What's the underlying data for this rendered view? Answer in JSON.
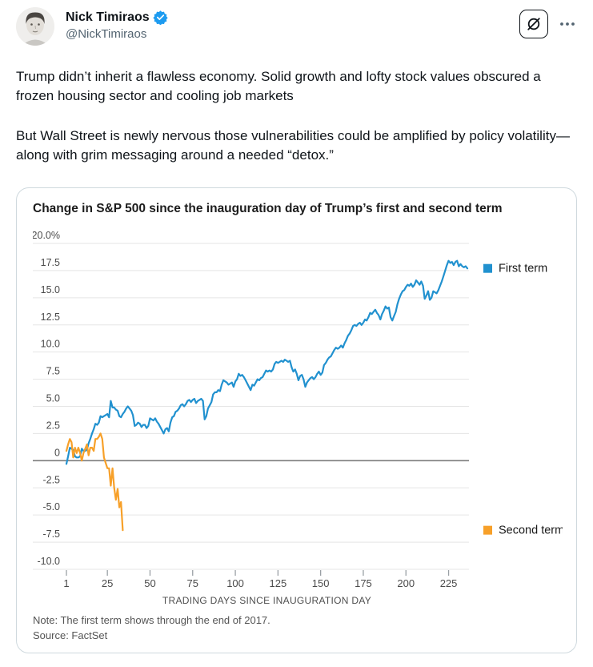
{
  "header": {
    "display_name": "Nick Timiraos",
    "handle": "@NickTimiraos",
    "icons": {
      "verified": "verified-badge",
      "grok": "slashed-circle",
      "more": "horizontal-dots"
    },
    "verified_color": "#1d9bf0"
  },
  "tweet": {
    "paragraph1": "Trump didn’t inherit a flawless economy. Solid growth and lofty stock values obscured a frozen housing sector and cooling job markets",
    "paragraph2": "But Wall Street is newly nervous those vulnerabilities could be amplified by policy volatility—along with grim messaging around a needed “detox.”"
  },
  "chart_data": {
    "type": "line",
    "title": "Change in S&P 500 since the inauguration day of Trump’s first and second term",
    "xlabel": "TRADING DAYS SINCE INAUGURATION DAY",
    "ylabel": "",
    "xlim": [
      1,
      236
    ],
    "ylim": [
      -10,
      20
    ],
    "grid": "horizontal",
    "legend_position": "right-of-plot, aligned to line ends",
    "yticks": [
      {
        "value": 20,
        "label": "20.0%"
      },
      {
        "value": 17.5,
        "label": "17.5"
      },
      {
        "value": 15,
        "label": "15.0"
      },
      {
        "value": 12.5,
        "label": "12.5"
      },
      {
        "value": 10,
        "label": "10.0"
      },
      {
        "value": 7.5,
        "label": "7.5"
      },
      {
        "value": 5,
        "label": "5.0"
      },
      {
        "value": 2.5,
        "label": "2.5"
      },
      {
        "value": 0,
        "label": "0"
      },
      {
        "value": -2.5,
        "label": "-2.5"
      },
      {
        "value": -5,
        "label": "-5.0"
      },
      {
        "value": -7.5,
        "label": "-7.5"
      },
      {
        "value": -10,
        "label": "-10.0"
      }
    ],
    "xticks": [
      1,
      25,
      50,
      75,
      100,
      125,
      150,
      175,
      200,
      225
    ],
    "colors": {
      "gridline": "#e5e5e5",
      "zero_line": "#7c7c7c",
      "axis_text": "#4a4a4a",
      "tick_mark": "#9aa0a5",
      "legend_text": "#1a1a1a"
    },
    "series": [
      {
        "name": "First term",
        "color": "#2191cf",
        "points": [
          [
            1,
            -0.3
          ],
          [
            2,
            0.4
          ],
          [
            3,
            1.2
          ],
          [
            4,
            1.1
          ],
          [
            5,
            1.0
          ],
          [
            6,
            0.4
          ],
          [
            7,
            0.3
          ],
          [
            8,
            0.3
          ],
          [
            9,
            0.4
          ],
          [
            10,
            1.1
          ],
          [
            11,
            0.9
          ],
          [
            12,
            0.9
          ],
          [
            13,
            1.0
          ],
          [
            14,
            1.6
          ],
          [
            15,
            2.0
          ],
          [
            16,
            2.5
          ],
          [
            17,
            2.9
          ],
          [
            18,
            3.4
          ],
          [
            19,
            3.3
          ],
          [
            20,
            3.5
          ],
          [
            21,
            4.1
          ],
          [
            22,
            4.0
          ],
          [
            23,
            4.1
          ],
          [
            24,
            4.2
          ],
          [
            25,
            4.3
          ],
          [
            26,
            4.0
          ],
          [
            27,
            5.5
          ],
          [
            28,
            4.9
          ],
          [
            29,
            4.9
          ],
          [
            30,
            4.7
          ],
          [
            31,
            4.6
          ],
          [
            32,
            4.1
          ],
          [
            33,
            4.0
          ],
          [
            34,
            4.3
          ],
          [
            35,
            4.5
          ],
          [
            36,
            4.8
          ],
          [
            37,
            5.0
          ],
          [
            38,
            4.8
          ],
          [
            39,
            4.6
          ],
          [
            40,
            4.2
          ],
          [
            41,
            3.2
          ],
          [
            42,
            3.3
          ],
          [
            43,
            3.5
          ],
          [
            44,
            3.4
          ],
          [
            45,
            3.1
          ],
          [
            46,
            3.3
          ],
          [
            47,
            3.3
          ],
          [
            48,
            3.0
          ],
          [
            49,
            3.2
          ],
          [
            50,
            3.9
          ],
          [
            51,
            3.8
          ],
          [
            52,
            3.7
          ],
          [
            53,
            3.9
          ],
          [
            54,
            3.6
          ],
          [
            55,
            3.4
          ],
          [
            56,
            3.1
          ],
          [
            57,
            2.8
          ],
          [
            58,
            2.5
          ],
          [
            59,
            2.9
          ],
          [
            60,
            3.0
          ],
          [
            61,
            2.7
          ],
          [
            62,
            3.5
          ],
          [
            63,
            4.0
          ],
          [
            64,
            4.1
          ],
          [
            65,
            4.5
          ],
          [
            66,
            4.6
          ],
          [
            67,
            4.8
          ],
          [
            68,
            5.1
          ],
          [
            69,
            5.2
          ],
          [
            70,
            5.0
          ],
          [
            71,
            5.2
          ],
          [
            72,
            5.5
          ],
          [
            73,
            5.6
          ],
          [
            74,
            5.4
          ],
          [
            75,
            5.6
          ],
          [
            76,
            5.7
          ],
          [
            77,
            5.3
          ],
          [
            78,
            5.5
          ],
          [
            79,
            5.6
          ],
          [
            80,
            5.7
          ],
          [
            81,
            5.5
          ],
          [
            82,
            3.8
          ],
          [
            83,
            4.1
          ],
          [
            84,
            4.8
          ],
          [
            85,
            5.1
          ],
          [
            86,
            5.4
          ],
          [
            87,
            6.1
          ],
          [
            88,
            6.3
          ],
          [
            89,
            6.3
          ],
          [
            90,
            6.5
          ],
          [
            91,
            6.4
          ],
          [
            92,
            7.0
          ],
          [
            93,
            7.4
          ],
          [
            94,
            7.3
          ],
          [
            95,
            7.2
          ],
          [
            96,
            7.0
          ],
          [
            97,
            7.1
          ],
          [
            98,
            7.2
          ],
          [
            99,
            6.8
          ],
          [
            100,
            7.3
          ],
          [
            101,
            7.5
          ],
          [
            102,
            8.0
          ],
          [
            103,
            7.8
          ],
          [
            104,
            7.9
          ],
          [
            105,
            7.7
          ],
          [
            106,
            7.4
          ],
          [
            107,
            7.1
          ],
          [
            108,
            6.8
          ],
          [
            109,
            6.5
          ],
          [
            110,
            7.0
          ],
          [
            111,
            6.9
          ],
          [
            112,
            7.2
          ],
          [
            113,
            7.5
          ],
          [
            114,
            7.4
          ],
          [
            115,
            7.6
          ],
          [
            116,
            7.7
          ],
          [
            117,
            8.0
          ],
          [
            118,
            8.3
          ],
          [
            119,
            8.2
          ],
          [
            120,
            8.3
          ],
          [
            121,
            8.2
          ],
          [
            122,
            8.4
          ],
          [
            123,
            8.9
          ],
          [
            124,
            9.1
          ],
          [
            125,
            9.0
          ],
          [
            126,
            9.1
          ],
          [
            127,
            9.2
          ],
          [
            128,
            9.1
          ],
          [
            129,
            9.3
          ],
          [
            130,
            9.2
          ],
          [
            131,
            9.1
          ],
          [
            132,
            9.2
          ],
          [
            133,
            8.6
          ],
          [
            134,
            8.2
          ],
          [
            135,
            8.4
          ],
          [
            136,
            8.0
          ],
          [
            137,
            7.4
          ],
          [
            138,
            7.8
          ],
          [
            139,
            7.9
          ],
          [
            140,
            7.5
          ],
          [
            141,
            6.8
          ],
          [
            142,
            7.2
          ],
          [
            143,
            7.4
          ],
          [
            144,
            7.6
          ],
          [
            145,
            7.7
          ],
          [
            146,
            7.5
          ],
          [
            147,
            7.7
          ],
          [
            148,
            8.0
          ],
          [
            149,
            8.2
          ],
          [
            150,
            7.9
          ],
          [
            151,
            8.1
          ],
          [
            152,
            8.8
          ],
          [
            153,
            9.0
          ],
          [
            154,
            9.3
          ],
          [
            155,
            9.5
          ],
          [
            156,
            9.6
          ],
          [
            157,
            9.9
          ],
          [
            158,
            10.2
          ],
          [
            159,
            10.4
          ],
          [
            160,
            10.3
          ],
          [
            161,
            10.4
          ],
          [
            162,
            10.6
          ],
          [
            163,
            10.4
          ],
          [
            164,
            10.8
          ],
          [
            165,
            11.1
          ],
          [
            166,
            11.5
          ],
          [
            167,
            11.7
          ],
          [
            168,
            12.0
          ],
          [
            169,
            12.4
          ],
          [
            170,
            12.5
          ],
          [
            171,
            12.4
          ],
          [
            172,
            12.6
          ],
          [
            173,
            12.7
          ],
          [
            174,
            12.5
          ],
          [
            175,
            12.7
          ],
          [
            176,
            13.0
          ],
          [
            177,
            12.9
          ],
          [
            178,
            13.2
          ],
          [
            179,
            13.6
          ],
          [
            180,
            13.5
          ],
          [
            181,
            13.7
          ],
          [
            182,
            13.9
          ],
          [
            183,
            13.6
          ],
          [
            184,
            13.4
          ],
          [
            185,
            13.0
          ],
          [
            186,
            13.5
          ],
          [
            187,
            13.8
          ],
          [
            188,
            14.2
          ],
          [
            189,
            14.0
          ],
          [
            190,
            14.1
          ],
          [
            191,
            13.2
          ],
          [
            192,
            12.9
          ],
          [
            193,
            13.3
          ],
          [
            194,
            13.7
          ],
          [
            195,
            14.4
          ],
          [
            196,
            14.9
          ],
          [
            197,
            15.3
          ],
          [
            198,
            15.6
          ],
          [
            199,
            15.7
          ],
          [
            200,
            16.0
          ],
          [
            201,
            16.2
          ],
          [
            202,
            16.1
          ],
          [
            203,
            16.3
          ],
          [
            204,
            16.0
          ],
          [
            205,
            16.2
          ],
          [
            206,
            16.6
          ],
          [
            207,
            16.4
          ],
          [
            208,
            16.2
          ],
          [
            209,
            16.5
          ],
          [
            210,
            16.1
          ],
          [
            211,
            14.9
          ],
          [
            212,
            15.2
          ],
          [
            213,
            15.6
          ],
          [
            214,
            14.8
          ],
          [
            215,
            15.0
          ],
          [
            216,
            15.6
          ],
          [
            217,
            15.5
          ],
          [
            218,
            15.4
          ],
          [
            219,
            15.7
          ],
          [
            220,
            16.1
          ],
          [
            221,
            16.5
          ],
          [
            222,
            17.0
          ],
          [
            223,
            17.5
          ],
          [
            224,
            18.0
          ],
          [
            225,
            18.4
          ],
          [
            226,
            18.2
          ],
          [
            227,
            18.3
          ],
          [
            228,
            18.0
          ],
          [
            229,
            18.3
          ],
          [
            230,
            18.4
          ],
          [
            231,
            17.9
          ],
          [
            232,
            18.1
          ],
          [
            233,
            17.9
          ],
          [
            234,
            17.8
          ],
          [
            235,
            17.9
          ],
          [
            236,
            17.7
          ]
        ]
      },
      {
        "name": "Second term",
        "color": "#f7a029",
        "points": [
          [
            1,
            0.9
          ],
          [
            2,
            1.5
          ],
          [
            3,
            2.0
          ],
          [
            4,
            1.7
          ],
          [
            5,
            0.3
          ],
          [
            6,
            1.2
          ],
          [
            7,
            0.7
          ],
          [
            8,
            1.2
          ],
          [
            9,
            0.7
          ],
          [
            10,
            0.0
          ],
          [
            11,
            0.7
          ],
          [
            12,
            1.1
          ],
          [
            13,
            1.5
          ],
          [
            14,
            0.5
          ],
          [
            15,
            1.2
          ],
          [
            16,
            1.2
          ],
          [
            17,
            0.9
          ],
          [
            18,
            2.0
          ],
          [
            19,
            2.0
          ],
          [
            20,
            2.2
          ],
          [
            21,
            2.5
          ],
          [
            22,
            2.0
          ],
          [
            23,
            0.3
          ],
          [
            24,
            -0.2
          ],
          [
            25,
            -0.7
          ],
          [
            26,
            -0.7
          ],
          [
            27,
            -2.3
          ],
          [
            28,
            -0.7
          ],
          [
            29,
            -2.5
          ],
          [
            30,
            -3.6
          ],
          [
            31,
            -2.6
          ],
          [
            32,
            -4.3
          ],
          [
            33,
            -3.8
          ],
          [
            34,
            -6.4
          ]
        ]
      }
    ],
    "note": "Note: The first term shows through the end of 2017.",
    "source": "Source: FactSet"
  }
}
